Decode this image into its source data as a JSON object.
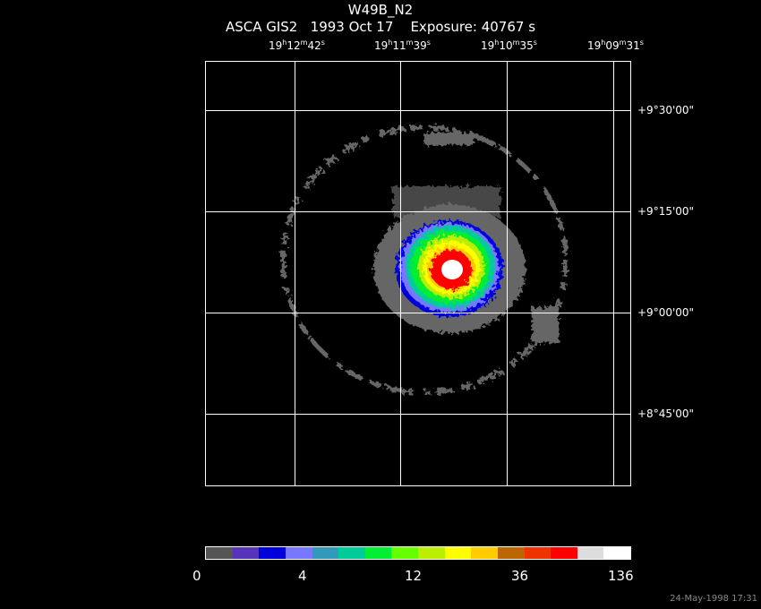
{
  "header": {
    "object": "W49B_N2",
    "subtitle": "ASCA GIS2   1993 Oct 17    Exposure: 40767 s"
  },
  "ra_ticks": [
    {
      "h": "19",
      "m": "12",
      "s": "42"
    },
    {
      "h": "19",
      "m": "11",
      "s": "39"
    },
    {
      "h": "19",
      "m": "10",
      "s": "35"
    },
    {
      "h": "19",
      "m": "09",
      "s": "31"
    }
  ],
  "dec_ticks": [
    "+9°30'00\"",
    "+9°15'00\"",
    "+9°00'00\"",
    "+8°45'00\""
  ],
  "colorbar": {
    "colors": [
      "#555555",
      "#5533bb",
      "#0000dd",
      "#7777ff",
      "#3399bb",
      "#00cc99",
      "#00ee33",
      "#66ff00",
      "#bbee00",
      "#ffff00",
      "#ffcc00",
      "#bb6600",
      "#ee3300",
      "#ff0000",
      "#dddddd",
      "#ffffff"
    ],
    "labels": [
      "0",
      "4",
      "12",
      "36",
      "136"
    ]
  },
  "timestamp": "24-May-1998 17:31"
}
